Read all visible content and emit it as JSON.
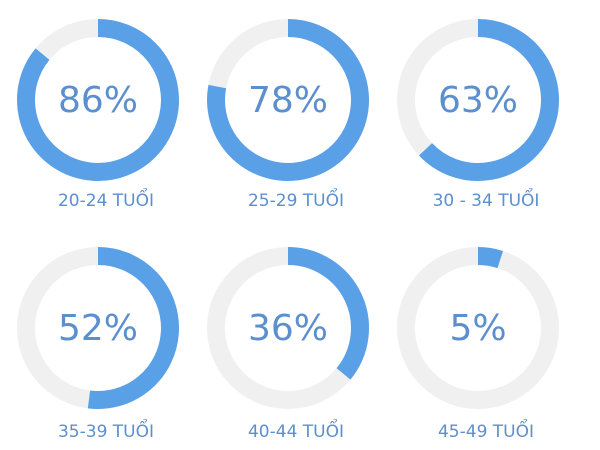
{
  "chart_data": [
    {
      "type": "donut",
      "title": "20-24 TUỔI",
      "values": [
        86
      ],
      "value_labels": [
        "86%"
      ],
      "ylim": [
        0,
        100
      ],
      "color": "#5aa0e6"
    },
    {
      "type": "donut",
      "title": "25-29 TUỔI",
      "values": [
        78
      ],
      "value_labels": [
        "78%"
      ],
      "ylim": [
        0,
        100
      ],
      "color": "#5aa0e6"
    },
    {
      "type": "donut",
      "title": "30 - 34 TUỔI",
      "values": [
        63
      ],
      "value_labels": [
        "63%"
      ],
      "ylim": [
        0,
        100
      ],
      "color": "#5aa0e6"
    },
    {
      "type": "donut",
      "title": "35-39 TUỔI",
      "values": [
        52
      ],
      "value_labels": [
        "52%"
      ],
      "ylim": [
        0,
        100
      ],
      "color": "#5aa0e6"
    },
    {
      "type": "donut",
      "title": "40-44 TUỔI",
      "values": [
        36
      ],
      "value_labels": [
        "36%"
      ],
      "ylim": [
        0,
        100
      ],
      "color": "#5aa0e6"
    },
    {
      "type": "donut",
      "title": "45-49 TUỔI",
      "values": [
        5
      ],
      "value_labels": [
        "5%"
      ],
      "ylim": [
        0,
        100
      ],
      "color": "#5aa0e6"
    }
  ]
}
